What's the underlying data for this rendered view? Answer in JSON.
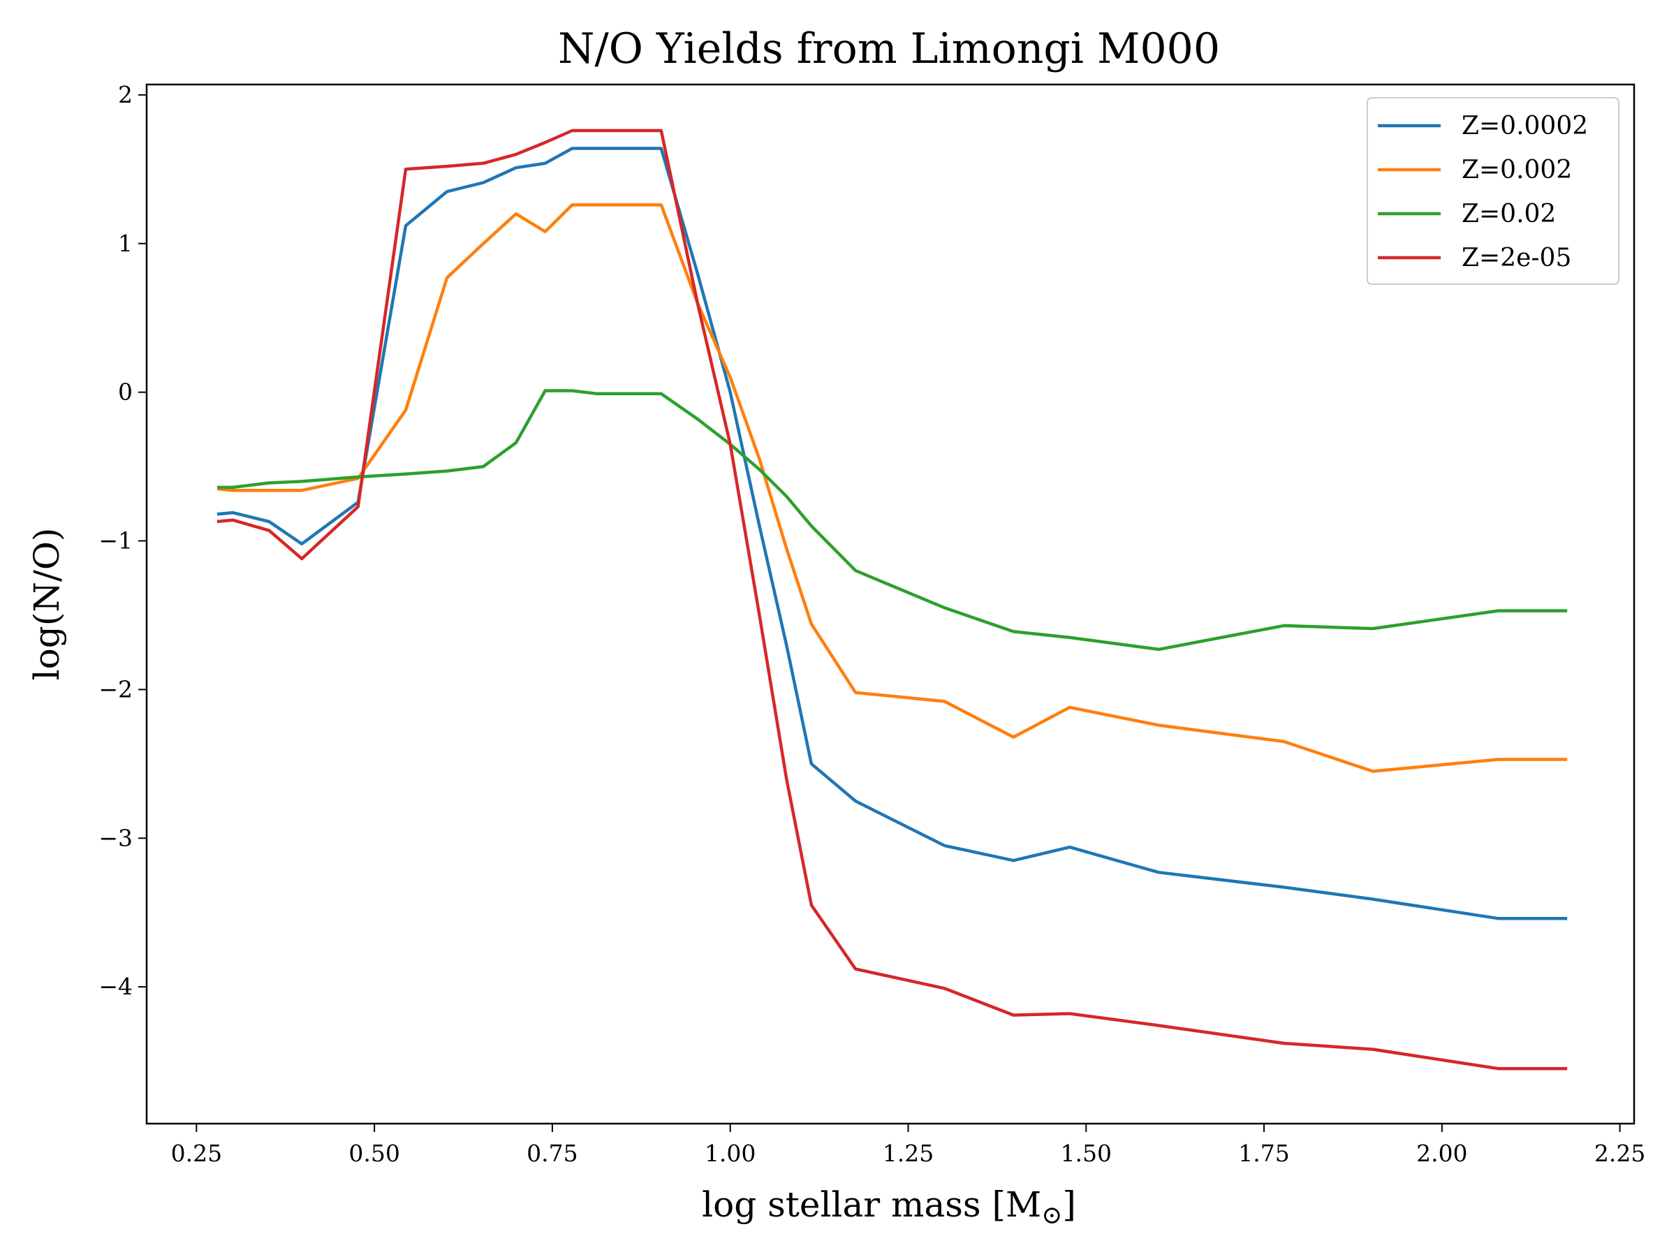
{
  "chart_data": {
    "type": "line",
    "title": "N/O Yields from Limongi M000",
    "xlabel": "log stellar mass [M",
    "xlabel_sub": "⊙",
    "xlabel_close": "]",
    "ylabel": "log(N/O)",
    "xlim": [
      0.18,
      2.27
    ],
    "ylim": [
      -4.92,
      2.07
    ],
    "xticks": [
      0.25,
      0.5,
      0.75,
      1.0,
      1.25,
      1.5,
      1.75,
      2.0,
      2.25
    ],
    "xtick_labels": [
      "0.25",
      "0.50",
      "0.75",
      "1.00",
      "1.25",
      "1.50",
      "1.75",
      "2.00",
      "2.25"
    ],
    "yticks": [
      2,
      1,
      0,
      -1,
      -2,
      -3,
      -4
    ],
    "ytick_labels": [
      "2",
      "1",
      "0",
      "−1",
      "−2",
      "−3",
      "−4"
    ],
    "grid": false,
    "legend_position": "top-right",
    "x": [
      0.279,
      0.301,
      0.352,
      0.398,
      0.477,
      0.544,
      0.602,
      0.653,
      0.699,
      0.74,
      0.778,
      0.813,
      0.903,
      0.954,
      1.0,
      1.041,
      1.079,
      1.114,
      1.176,
      1.301,
      1.398,
      1.477,
      1.602,
      1.778,
      1.903,
      2.079,
      2.176
    ],
    "series": [
      {
        "name": "Z=0.0002",
        "color": "#1f77b4",
        "values": [
          -0.82,
          -0.81,
          -0.87,
          -1.02,
          -0.74,
          1.12,
          1.35,
          1.41,
          1.51,
          1.54,
          1.64,
          1.64,
          1.64,
          0.8,
          0.0,
          -0.9,
          -1.7,
          -2.5,
          -2.75,
          -3.05,
          -3.15,
          -3.06,
          -3.23,
          -3.33,
          -3.41,
          -3.54,
          -3.54
        ]
      },
      {
        "name": "Z=0.002",
        "color": "#ff7f0e",
        "values": [
          -0.65,
          -0.66,
          -0.66,
          -0.66,
          -0.58,
          -0.12,
          0.77,
          1.0,
          1.2,
          1.08,
          1.26,
          1.26,
          1.26,
          0.6,
          0.1,
          -0.45,
          -1.05,
          -1.56,
          -2.02,
          -2.08,
          -2.32,
          -2.12,
          -2.24,
          -2.35,
          -2.55,
          -2.47,
          -2.47
        ]
      },
      {
        "name": "Z=0.02",
        "color": "#2ca02c",
        "values": [
          -0.64,
          -0.64,
          -0.61,
          -0.6,
          -0.57,
          -0.55,
          -0.53,
          -0.5,
          -0.34,
          0.01,
          0.01,
          -0.01,
          -0.01,
          -0.18,
          -0.35,
          -0.52,
          -0.7,
          -0.9,
          -1.2,
          -1.45,
          -1.61,
          -1.65,
          -1.73,
          -1.57,
          -1.59,
          -1.47,
          -1.47
        ]
      },
      {
        "name": "Z=2e-05",
        "color": "#d62728",
        "values": [
          -0.87,
          -0.86,
          -0.93,
          -1.12,
          -0.77,
          1.5,
          1.52,
          1.54,
          1.6,
          1.68,
          1.76,
          1.76,
          1.76,
          0.6,
          -0.35,
          -1.5,
          -2.6,
          -3.45,
          -3.88,
          -4.01,
          -4.19,
          -4.18,
          -4.26,
          -4.38,
          -4.42,
          -4.55,
          -4.55
        ]
      }
    ]
  }
}
